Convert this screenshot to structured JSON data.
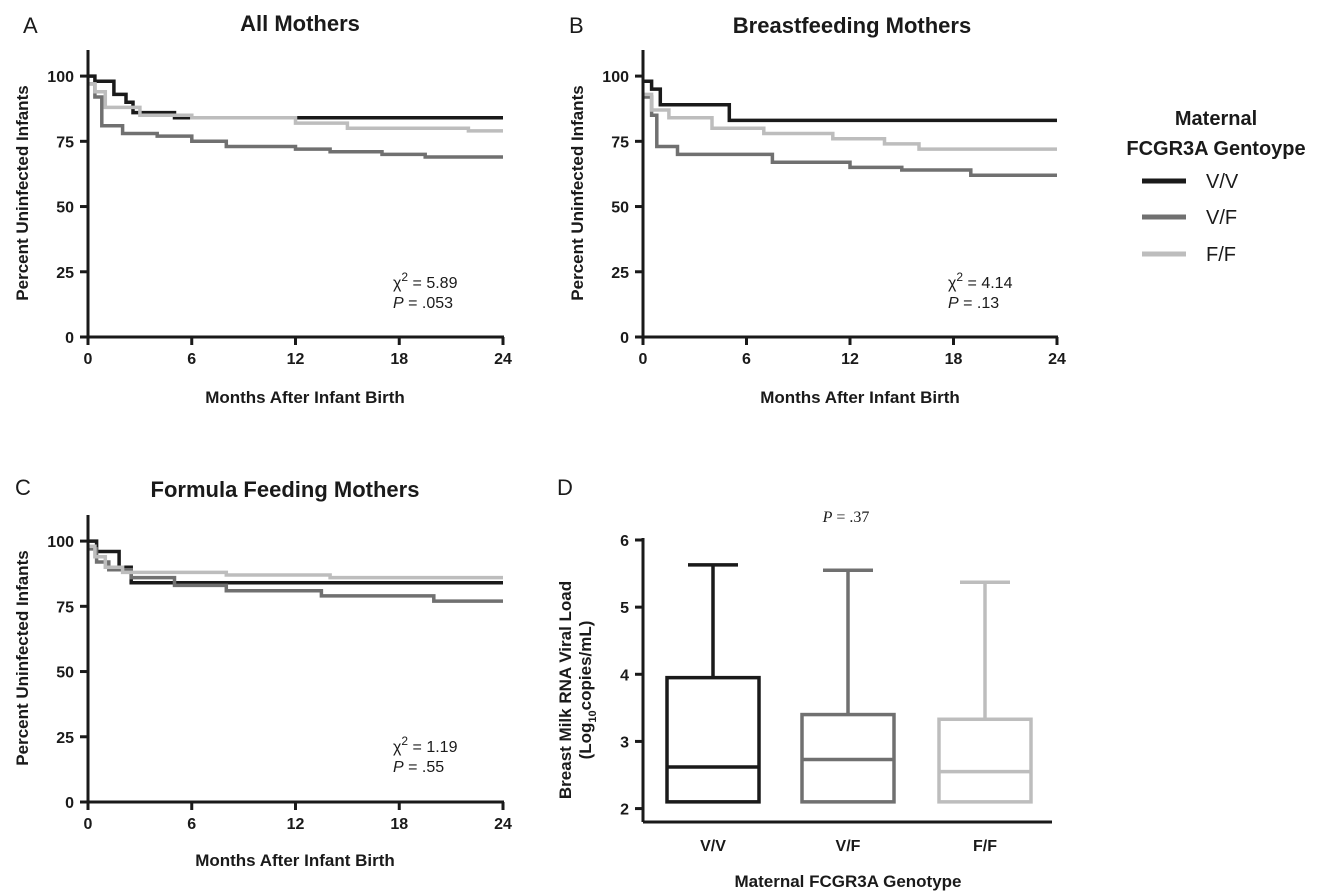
{
  "colors": {
    "V/V": "#1a1a1a",
    "V/F": "#707070",
    "F/F": "#bdbdbd",
    "axis": "#1a1a1a"
  },
  "legend": {
    "title_line1": "Maternal",
    "title_line2": "FCGR3A Gentoype",
    "items": [
      {
        "key": "V/V",
        "label": "V/V"
      },
      {
        "key": "V/F",
        "label": "V/F"
      },
      {
        "key": "F/F",
        "label": "F/F"
      }
    ]
  },
  "chart_data": [
    {
      "type": "line",
      "panel": "A",
      "title": "All Mothers",
      "xlabel": "Months After Infant Birth",
      "ylabel": "Percent Uninfected Infants",
      "xlim": [
        0,
        24
      ],
      "ylim": [
        0,
        110
      ],
      "xticks": [
        0,
        6,
        12,
        18,
        24
      ],
      "yticks": [
        0,
        25,
        50,
        75,
        100
      ],
      "stat_chi": "χ2 = 5.89",
      "stat_p_value": "= .053",
      "series": [
        {
          "name": "V/V",
          "x": [
            0,
            0.4,
            1.5,
            2.2,
            2.6,
            5.0,
            24
          ],
          "y": [
            100,
            98,
            93,
            90,
            86,
            84,
            84
          ]
        },
        {
          "name": "V/F",
          "x": [
            0,
            0.4,
            0.8,
            2.0,
            4.0,
            6.0,
            8.0,
            12.0,
            14.0,
            17.0,
            19.5,
            24
          ],
          "y": [
            97,
            92,
            81,
            78,
            77,
            75,
            73,
            72,
            71,
            70,
            69,
            69
          ]
        },
        {
          "name": "F/F",
          "x": [
            0,
            0.4,
            1.0,
            3.0,
            6.0,
            12.0,
            15.0,
            22.0,
            24
          ],
          "y": [
            97,
            94,
            88,
            85,
            84,
            82,
            80,
            79,
            79
          ]
        }
      ]
    },
    {
      "type": "line",
      "panel": "B",
      "title": "Breastfeeding Mothers",
      "xlabel": "Months After Infant Birth",
      "ylabel": "Percent Uninfected Infants",
      "xlim": [
        0,
        24
      ],
      "ylim": [
        0,
        110
      ],
      "xticks": [
        0,
        6,
        12,
        18,
        24
      ],
      "yticks": [
        0,
        25,
        50,
        75,
        100
      ],
      "stat_chi": "χ2 = 4.14",
      "stat_p_value": "= .13",
      "series": [
        {
          "name": "V/V",
          "x": [
            0,
            0.5,
            1.0,
            5.0,
            24
          ],
          "y": [
            98,
            95,
            89,
            83,
            83
          ]
        },
        {
          "name": "V/F",
          "x": [
            0,
            0.5,
            0.8,
            2.0,
            7.5,
            12.0,
            15.0,
            19.0,
            24
          ],
          "y": [
            92,
            85,
            73,
            70,
            67,
            65,
            64,
            62,
            62
          ]
        },
        {
          "name": "F/F",
          "x": [
            0,
            0.5,
            1.5,
            4.0,
            7.0,
            11.0,
            14.0,
            16.0,
            24
          ],
          "y": [
            93,
            87,
            84,
            80,
            78,
            76,
            74,
            72,
            72
          ]
        }
      ]
    },
    {
      "type": "line",
      "panel": "C",
      "title": "Formula Feeding Mothers",
      "xlabel": "Months After Infant Birth",
      "ylabel": "Percent Uninfected Infants",
      "xlim": [
        0,
        24
      ],
      "ylim": [
        0,
        110
      ],
      "xticks": [
        0,
        6,
        12,
        18,
        24
      ],
      "yticks": [
        0,
        25,
        50,
        75,
        100
      ],
      "stat_chi": "χ2 = 1.19",
      "stat_p_value": "= .55",
      "series": [
        {
          "name": "V/V",
          "x": [
            0,
            0.5,
            1.8,
            2.5,
            24
          ],
          "y": [
            100,
            96,
            90,
            84,
            84
          ]
        },
        {
          "name": "V/F",
          "x": [
            0,
            0.5,
            1.2,
            2.5,
            5.0,
            8.0,
            13.5,
            20.0,
            24
          ],
          "y": [
            97,
            92,
            89,
            86,
            83,
            81,
            79,
            77,
            77
          ]
        },
        {
          "name": "F/F",
          "x": [
            0,
            0.4,
            1.0,
            2.0,
            8.0,
            14.0,
            24
          ],
          "y": [
            98,
            94,
            90,
            88,
            87,
            86,
            86
          ]
        }
      ]
    },
    {
      "type": "box",
      "panel": "D",
      "title_p_value": "= .37",
      "xlabel": "Maternal FCGR3A  Genotype",
      "ylabel_line1": "Breast Milk RNA Viral Load",
      "ylabel_line2": "(Log",
      "ylabel_sub": "10",
      "ylabel_line2_end": "copies/mL)",
      "ylim": [
        1.8,
        6
      ],
      "yticks": [
        2,
        3,
        4,
        5,
        6
      ],
      "categories": [
        "V/V",
        "V/F",
        "F/F"
      ],
      "boxes": [
        {
          "name": "V/V",
          "min": 2.1,
          "q1": 2.1,
          "median": 2.62,
          "q3": 3.95,
          "max": 5.63
        },
        {
          "name": "V/F",
          "min": 2.1,
          "q1": 2.1,
          "median": 2.73,
          "q3": 3.4,
          "max": 5.55
        },
        {
          "name": "F/F",
          "min": 2.1,
          "q1": 2.1,
          "median": 2.55,
          "q3": 3.33,
          "max": 5.37
        }
      ]
    }
  ]
}
